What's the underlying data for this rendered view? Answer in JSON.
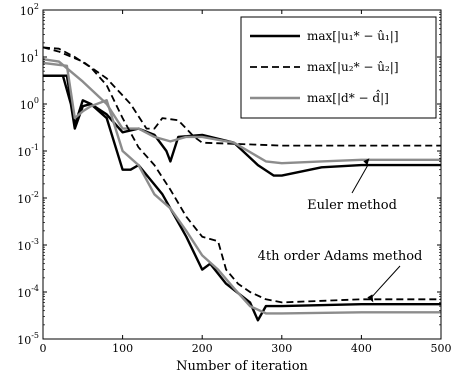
{
  "chart_data": {
    "type": "line",
    "xlabel": "Number of iteration",
    "ylabel": "",
    "title": "",
    "xlim": [
      0,
      500
    ],
    "ylim": [
      1e-05,
      100
    ],
    "yscale": "log",
    "grid": false,
    "legend_position": "top-right",
    "x_ticks": [
      0,
      100,
      200,
      300,
      400,
      500
    ],
    "x_tick_labels": [
      "0",
      "100",
      "200",
      "300",
      "400",
      "500"
    ],
    "y_ticks": [
      1e-05,
      0.0001,
      0.001,
      0.01,
      0.1,
      1,
      10,
      100
    ],
    "y_tick_labels": [
      {
        "base": "10",
        "exp": "-5"
      },
      {
        "base": "10",
        "exp": "-4"
      },
      {
        "base": "10",
        "exp": "-3"
      },
      {
        "base": "10",
        "exp": "-2"
      },
      {
        "base": "10",
        "exp": "-1"
      },
      {
        "base": "10",
        "exp": "0"
      },
      {
        "base": "10",
        "exp": "1"
      },
      {
        "base": "10",
        "exp": "2"
      }
    ],
    "legend": [
      {
        "label": "max[|u₁* − û₁|]",
        "color": "#000000",
        "dash": "solid",
        "width": 2.4
      },
      {
        "label": "max[|u₂* − û₂|]",
        "color": "#000000",
        "dash": "dashed",
        "width": 1.8
      },
      {
        "label": "max[|d* − d̂|]",
        "color": "#8c8c8c",
        "dash": "solid",
        "width": 2.4
      }
    ],
    "annotations": [
      {
        "text": "Euler method",
        "arrow_to": [
          410,
          0.07
        ]
      },
      {
        "text": "4th order Adams method",
        "arrow_to": [
          415,
          6e-05
        ]
      }
    ],
    "series": [
      {
        "legend_index": 0,
        "method": "Euler",
        "points": [
          [
            0,
            4
          ],
          [
            30,
            4
          ],
          [
            40,
            0.35
          ],
          [
            50,
            1.2
          ],
          [
            60,
            1.0
          ],
          [
            80,
            0.6
          ],
          [
            100,
            0.25
          ],
          [
            120,
            0.3
          ],
          [
            140,
            0.22
          ],
          [
            155,
            0.1
          ],
          [
            160,
            0.06
          ],
          [
            170,
            0.2
          ],
          [
            200,
            0.22
          ],
          [
            240,
            0.15
          ],
          [
            270,
            0.05
          ],
          [
            290,
            0.03
          ],
          [
            300,
            0.03
          ],
          [
            350,
            0.045
          ],
          [
            400,
            0.05
          ],
          [
            500,
            0.05
          ]
        ]
      },
      {
        "legend_index": 1,
        "method": "Euler",
        "points": [
          [
            0,
            16
          ],
          [
            20,
            13
          ],
          [
            50,
            8
          ],
          [
            80,
            3.5
          ],
          [
            110,
            1.0
          ],
          [
            130,
            0.3
          ],
          [
            140,
            0.3
          ],
          [
            150,
            0.5
          ],
          [
            170,
            0.45
          ],
          [
            190,
            0.2
          ],
          [
            200,
            0.15
          ],
          [
            250,
            0.14
          ],
          [
            300,
            0.13
          ],
          [
            400,
            0.13
          ],
          [
            500,
            0.13
          ]
        ]
      },
      {
        "legend_index": 2,
        "method": "Euler",
        "points": [
          [
            0,
            9
          ],
          [
            20,
            8
          ],
          [
            50,
            3
          ],
          [
            80,
            1.0
          ],
          [
            100,
            0.3
          ],
          [
            120,
            0.3
          ],
          [
            140,
            0.2
          ],
          [
            160,
            0.16
          ],
          [
            180,
            0.2
          ],
          [
            200,
            0.2
          ],
          [
            240,
            0.15
          ],
          [
            280,
            0.06
          ],
          [
            300,
            0.055
          ],
          [
            350,
            0.06
          ],
          [
            400,
            0.065
          ],
          [
            500,
            0.065
          ]
        ]
      },
      {
        "legend_index": 0,
        "method": "Adams",
        "points": [
          [
            0,
            4
          ],
          [
            25,
            4
          ],
          [
            35,
            1.0
          ],
          [
            40,
            0.3
          ],
          [
            50,
            0.9
          ],
          [
            60,
            1.0
          ],
          [
            80,
            0.5
          ],
          [
            100,
            0.04
          ],
          [
            110,
            0.04
          ],
          [
            120,
            0.05
          ],
          [
            150,
            0.012
          ],
          [
            180,
            0.0015
          ],
          [
            200,
            0.0003
          ],
          [
            210,
            0.0004
          ],
          [
            230,
            0.00015
          ],
          [
            260,
            6e-05
          ],
          [
            270,
            2.5e-05
          ],
          [
            280,
            5e-05
          ],
          [
            300,
            5e-05
          ],
          [
            400,
            5.5e-05
          ],
          [
            500,
            5.5e-05
          ]
        ]
      },
      {
        "legend_index": 1,
        "method": "Adams",
        "points": [
          [
            0,
            16
          ],
          [
            20,
            15
          ],
          [
            40,
            10
          ],
          [
            60,
            6
          ],
          [
            80,
            2.5
          ],
          [
            100,
            0.5
          ],
          [
            120,
            0.12
          ],
          [
            140,
            0.05
          ],
          [
            160,
            0.015
          ],
          [
            180,
            0.004
          ],
          [
            200,
            0.0015
          ],
          [
            220,
            0.0012
          ],
          [
            230,
            0.0003
          ],
          [
            245,
            0.00015
          ],
          [
            260,
            0.0001
          ],
          [
            280,
            7e-05
          ],
          [
            300,
            6e-05
          ],
          [
            400,
            7e-05
          ],
          [
            500,
            7e-05
          ]
        ]
      },
      {
        "legend_index": 2,
        "method": "Adams",
        "points": [
          [
            0,
            7.5
          ],
          [
            30,
            6.5
          ],
          [
            40,
            0.5
          ],
          [
            50,
            0.7
          ],
          [
            60,
            0.9
          ],
          [
            80,
            1.2
          ],
          [
            100,
            0.1
          ],
          [
            120,
            0.05
          ],
          [
            140,
            0.012
          ],
          [
            160,
            0.006
          ],
          [
            180,
            0.002
          ],
          [
            200,
            0.0006
          ],
          [
            220,
            0.0003
          ],
          [
            240,
            0.00012
          ],
          [
            260,
            5e-05
          ],
          [
            280,
            3.5e-05
          ],
          [
            300,
            3.5e-05
          ],
          [
            400,
            3.7e-05
          ],
          [
            500,
            3.7e-05
          ]
        ]
      }
    ]
  }
}
